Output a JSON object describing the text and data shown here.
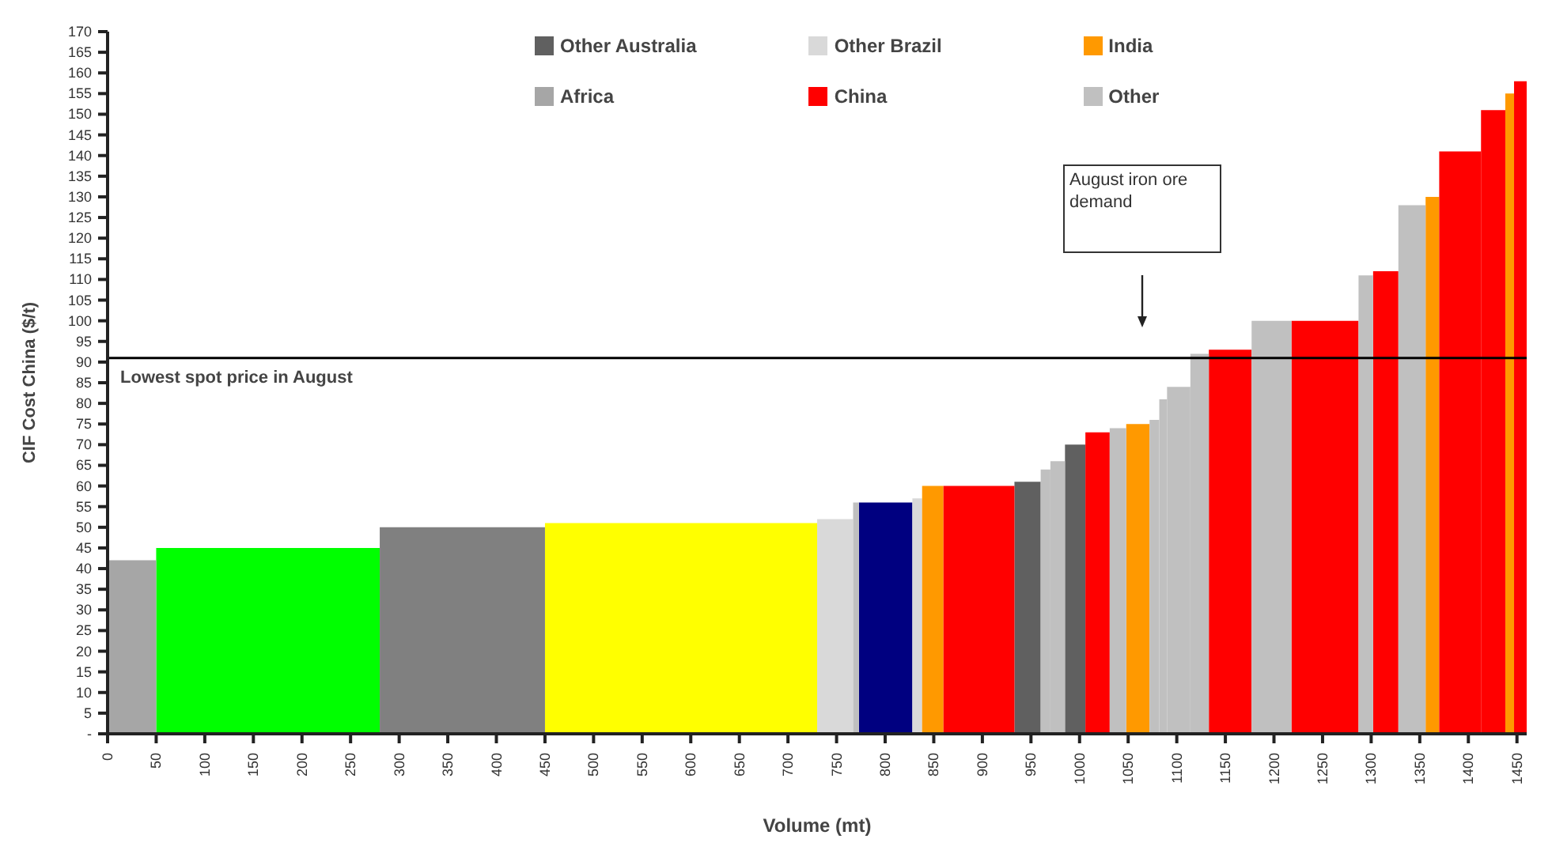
{
  "chart_data": {
    "type": "histogram",
    "xlabel": "Volume (mt)",
    "ylabel": "CIF Cost China ($/t)",
    "bins": [
      0,
      50,
      280,
      450,
      730,
      767,
      773,
      828,
      838,
      860,
      933,
      960,
      970,
      985,
      1006,
      1031,
      1048,
      1072,
      1082,
      1090,
      1114,
      1133,
      1177,
      1218,
      1287,
      1302,
      1328,
      1356,
      1370,
      1413,
      1438,
      1447,
      1460
    ],
    "series": [
      {
        "color": "#ffff00",
        "values": [
          null,
          null,
          null,
          51,
          null,
          null,
          null,
          null,
          null,
          null,
          null,
          null,
          null,
          null,
          null,
          null,
          null,
          null,
          null,
          null,
          null,
          null,
          null,
          null,
          null,
          null,
          null,
          null,
          null,
          null,
          null,
          null
        ]
      },
      {
        "color": "#00ff00",
        "values": [
          null,
          45,
          null,
          null,
          null,
          null,
          null,
          null,
          null,
          null,
          null,
          null,
          null,
          null,
          null,
          null,
          null,
          null,
          null,
          null,
          null,
          null,
          null,
          null,
          null,
          null,
          null,
          null,
          null,
          null,
          null,
          null
        ]
      },
      {
        "color": "#808080",
        "values": [
          null,
          null,
          50,
          null,
          null,
          null,
          null,
          null,
          null,
          null,
          null,
          null,
          null,
          null,
          null,
          null,
          null,
          null,
          null,
          null,
          null,
          null,
          null,
          null,
          null,
          null,
          null,
          null,
          null,
          null,
          null,
          null
        ]
      },
      {
        "color": "#000080",
        "values": [
          null,
          null,
          null,
          null,
          null,
          null,
          56,
          null,
          null,
          null,
          null,
          null,
          null,
          null,
          null,
          null,
          null,
          null,
          null,
          null,
          null,
          null,
          null,
          null,
          null,
          null,
          null,
          null,
          null,
          null,
          null,
          null
        ]
      },
      {
        "name": "Other Australia",
        "color": "#606060",
        "values": [
          null,
          null,
          null,
          null,
          null,
          null,
          null,
          null,
          null,
          null,
          61,
          null,
          null,
          70,
          null,
          null,
          null,
          null,
          null,
          null,
          null,
          null,
          null,
          null,
          null,
          null,
          null,
          null,
          null,
          null,
          null,
          null
        ]
      },
      {
        "name": "Other Brazil",
        "color": "#d9d9d9",
        "values": [
          null,
          null,
          null,
          null,
          52,
          null,
          null,
          57,
          null,
          null,
          null,
          null,
          null,
          null,
          null,
          null,
          null,
          null,
          null,
          null,
          null,
          null,
          null,
          null,
          null,
          null,
          null,
          null,
          null,
          null,
          null,
          null
        ]
      },
      {
        "name": "India",
        "color": "#ff9900",
        "values": [
          null,
          null,
          null,
          null,
          null,
          null,
          null,
          null,
          60,
          null,
          null,
          null,
          null,
          null,
          null,
          null,
          75,
          null,
          null,
          null,
          null,
          null,
          null,
          null,
          null,
          null,
          null,
          130,
          null,
          null,
          155,
          null
        ]
      },
      {
        "name": "Africa",
        "color": "#a6a6a6",
        "values": [
          42,
          null,
          null,
          null,
          null,
          null,
          null,
          null,
          null,
          null,
          null,
          null,
          null,
          null,
          null,
          null,
          null,
          null,
          null,
          null,
          null,
          null,
          null,
          null,
          null,
          null,
          null,
          null,
          null,
          null,
          null,
          null
        ]
      },
      {
        "name": "China",
        "color": "#ff0000",
        "values": [
          null,
          null,
          null,
          null,
          null,
          null,
          null,
          null,
          null,
          60,
          null,
          null,
          null,
          null,
          73,
          null,
          null,
          null,
          null,
          null,
          null,
          93,
          null,
          100,
          null,
          112,
          null,
          null,
          141,
          151,
          null,
          158
        ]
      },
      {
        "name": "Other",
        "color": "#c0c0c0",
        "values": [
          null,
          null,
          null,
          null,
          null,
          56,
          null,
          null,
          null,
          null,
          null,
          64,
          66,
          null,
          null,
          74,
          null,
          76,
          81,
          84,
          92,
          null,
          100,
          null,
          111,
          null,
          128,
          null,
          null,
          null,
          null,
          null
        ]
      }
    ],
    "xlim": [
      0,
      1460
    ],
    "xticks": [
      0,
      50,
      100,
      150,
      200,
      250,
      300,
      350,
      400,
      450,
      500,
      550,
      600,
      650,
      700,
      750,
      800,
      850,
      900,
      950,
      1000,
      1050,
      1100,
      1150,
      1200,
      1250,
      1300,
      1350,
      1400,
      1450
    ],
    "ylim": [
      0,
      170
    ],
    "yticks": [
      {
        "value": 0,
        "label": "-"
      },
      5,
      10,
      15,
      20,
      25,
      30,
      35,
      40,
      45,
      50,
      55,
      60,
      65,
      70,
      75,
      80,
      85,
      90,
      95,
      100,
      105,
      110,
      115,
      120,
      125,
      130,
      135,
      140,
      145,
      150,
      155,
      160,
      165,
      170
    ],
    "ref_lines": [
      {
        "axis": "y",
        "value": 91,
        "label": "Lowest spot price in August",
        "color": "#000000"
      }
    ],
    "annotations": [
      "August iron ore demand"
    ],
    "legend": "top"
  }
}
